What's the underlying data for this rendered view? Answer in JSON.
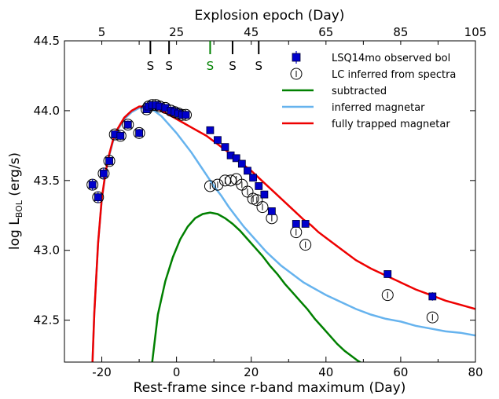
{
  "chart_data": {
    "type": "line",
    "xlabel": "Rest-frame since r-band maximum (Day)",
    "ylabel_main": "log L",
    "ylabel_sub": "BOL",
    "ylabel_unit": " (erg/s)",
    "top_xlabel": "Explosion epoch (Day)",
    "xlim": [
      -30,
      80
    ],
    "ylim": [
      42.2,
      44.5
    ],
    "xticks": [
      -20,
      0,
      20,
      40,
      60,
      80
    ],
    "yticks": [
      42.5,
      43.0,
      43.5,
      44.0,
      44.5
    ],
    "top_ticks_x": [
      -30,
      -20,
      -10,
      0,
      10,
      20,
      30,
      40,
      50,
      60,
      70
    ],
    "top_ticks_labels": [
      "5",
      "25",
      "45",
      "65",
      "85",
      "105"
    ],
    "top_ticks_labels_x": [
      -20,
      0,
      20,
      40,
      60,
      80
    ],
    "spectra_markers": [
      {
        "x": -7,
        "label": "S",
        "color": "#000000"
      },
      {
        "x": -2,
        "label": "S",
        "color": "#000000"
      },
      {
        "x": 9,
        "label": "S",
        "color": "#008000"
      },
      {
        "x": 15,
        "label": "S",
        "color": "#000000"
      },
      {
        "x": 22,
        "label": "S",
        "color": "#000000"
      }
    ],
    "legend_position": "top-right",
    "series": [
      {
        "name": "LSQ14mo observed bol",
        "kind": "square-errorbar",
        "color": "#0000cc",
        "x": [
          -22.5,
          -21,
          -19.5,
          -18,
          -16.5,
          -15,
          -13,
          -10,
          -8,
          -7.5,
          -6.5,
          -5.5,
          -4.5,
          -3,
          -1.5,
          -0.5,
          0.5,
          1.5,
          2.5,
          9,
          11,
          13,
          14.5,
          16,
          17.5,
          19,
          20.5,
          22,
          23.5,
          25.5,
          32,
          34.5,
          56.5,
          68.5
        ],
        "y": [
          43.47,
          43.38,
          43.55,
          43.64,
          43.83,
          43.82,
          43.9,
          43.84,
          44.01,
          44.03,
          44.04,
          44.04,
          44.03,
          44.02,
          44.0,
          43.99,
          43.98,
          43.97,
          43.97,
          43.86,
          43.79,
          43.74,
          43.68,
          43.66,
          43.62,
          43.57,
          43.52,
          43.46,
          43.4,
          43.28,
          43.19,
          43.19,
          42.83,
          42.67
        ],
        "yerr": [
          0.04,
          0.04,
          0.04,
          0.03,
          0.03,
          0.03,
          0.03,
          0.03,
          0.02,
          0.02,
          0.02,
          0.02,
          0.02,
          0.02,
          0.02,
          0.02,
          0.02,
          0.02,
          0.02,
          0.02,
          0.02,
          0.02,
          0.02,
          0.02,
          0.02,
          0.02,
          0.02,
          0.02,
          0.02,
          0.02,
          0.02,
          0.02,
          0.02,
          0.03
        ]
      },
      {
        "name": "LC inferred from spectra",
        "kind": "open-circle",
        "color": "#000000",
        "x": [
          -22.5,
          -21,
          -19.5,
          -18,
          -16.5,
          -15,
          -13,
          -10,
          -8,
          -7.5,
          -6.5,
          -5.5,
          -4.5,
          -3,
          -1.5,
          -0.5,
          0.5,
          1.5,
          2.5,
          9,
          11,
          13,
          14.5,
          16,
          17.5,
          19,
          20.5,
          21.5,
          23,
          25.5,
          32,
          34.5,
          56.5,
          68.5
        ],
        "y": [
          43.47,
          43.38,
          43.55,
          43.64,
          43.83,
          43.82,
          43.9,
          43.84,
          44.01,
          44.03,
          44.04,
          44.04,
          44.03,
          44.02,
          44.0,
          43.99,
          43.98,
          43.97,
          43.97,
          43.46,
          43.47,
          43.5,
          43.5,
          43.51,
          43.47,
          43.42,
          43.37,
          43.36,
          43.31,
          43.23,
          43.13,
          43.04,
          42.68,
          42.52
        ]
      },
      {
        "name": "subtracted",
        "kind": "line",
        "color": "#008000",
        "x": [
          -6.5,
          -5,
          -3,
          -1,
          1,
          3,
          5,
          7,
          9,
          11,
          13,
          15,
          17,
          19,
          21,
          23,
          25,
          27,
          29,
          31,
          33,
          35,
          37,
          39,
          41,
          43,
          45,
          47,
          48.5,
          51
        ],
        "y": [
          42.2,
          42.54,
          42.78,
          42.95,
          43.08,
          43.17,
          43.23,
          43.26,
          43.27,
          43.26,
          43.23,
          43.19,
          43.14,
          43.08,
          43.02,
          42.96,
          42.89,
          42.83,
          42.76,
          42.7,
          42.64,
          42.58,
          42.51,
          42.45,
          42.39,
          42.33,
          42.28,
          42.24,
          42.21,
          42.17
        ]
      },
      {
        "name": "inferred magnetar",
        "kind": "line",
        "color": "#66b3ee",
        "x": [
          -22.5,
          -22,
          -21,
          -20,
          -19,
          -18,
          -17,
          -16,
          -14,
          -12,
          -10,
          -8,
          -6,
          -4,
          -2,
          0,
          2,
          4,
          6,
          8,
          10,
          12,
          14,
          16,
          18,
          20,
          22,
          24,
          26,
          28,
          30,
          32,
          34,
          36,
          38,
          40,
          44,
          48,
          52,
          56,
          60,
          64,
          68,
          72,
          76,
          80
        ],
        "y": [
          42.2,
          42.55,
          43.05,
          43.36,
          43.55,
          43.68,
          43.78,
          43.85,
          43.94,
          43.99,
          44.02,
          44.02,
          44.0,
          43.96,
          43.9,
          43.84,
          43.77,
          43.7,
          43.62,
          43.54,
          43.46,
          43.39,
          43.31,
          43.24,
          43.17,
          43.11,
          43.05,
          42.99,
          42.94,
          42.89,
          42.85,
          42.81,
          42.77,
          42.74,
          42.71,
          42.68,
          42.63,
          42.58,
          42.54,
          42.51,
          42.49,
          42.46,
          42.44,
          42.42,
          42.41,
          42.39
        ]
      },
      {
        "name": "fully trapped magnetar",
        "kind": "line",
        "color": "#ee0000",
        "x": [
          -22.5,
          -22,
          -21,
          -20,
          -19,
          -18,
          -17,
          -16,
          -14,
          -12,
          -10,
          -8,
          -6,
          -4,
          -2,
          0,
          2,
          4,
          6,
          8,
          10,
          12,
          14,
          16,
          18,
          20,
          22,
          24,
          26,
          28,
          30,
          32,
          34,
          36,
          38,
          40,
          44,
          48,
          52,
          56,
          60,
          64,
          68,
          72,
          76,
          80
        ],
        "y": [
          42.2,
          42.55,
          43.05,
          43.37,
          43.56,
          43.69,
          43.79,
          43.86,
          43.95,
          44.0,
          44.03,
          44.03,
          44.02,
          44.0,
          43.97,
          43.94,
          43.91,
          43.88,
          43.85,
          43.82,
          43.78,
          43.74,
          43.7,
          43.66,
          43.61,
          43.57,
          43.52,
          43.47,
          43.42,
          43.37,
          43.32,
          43.27,
          43.22,
          43.18,
          43.13,
          43.09,
          43.01,
          42.93,
          42.87,
          42.82,
          42.77,
          42.72,
          42.68,
          42.64,
          42.61,
          42.58
        ]
      }
    ]
  }
}
